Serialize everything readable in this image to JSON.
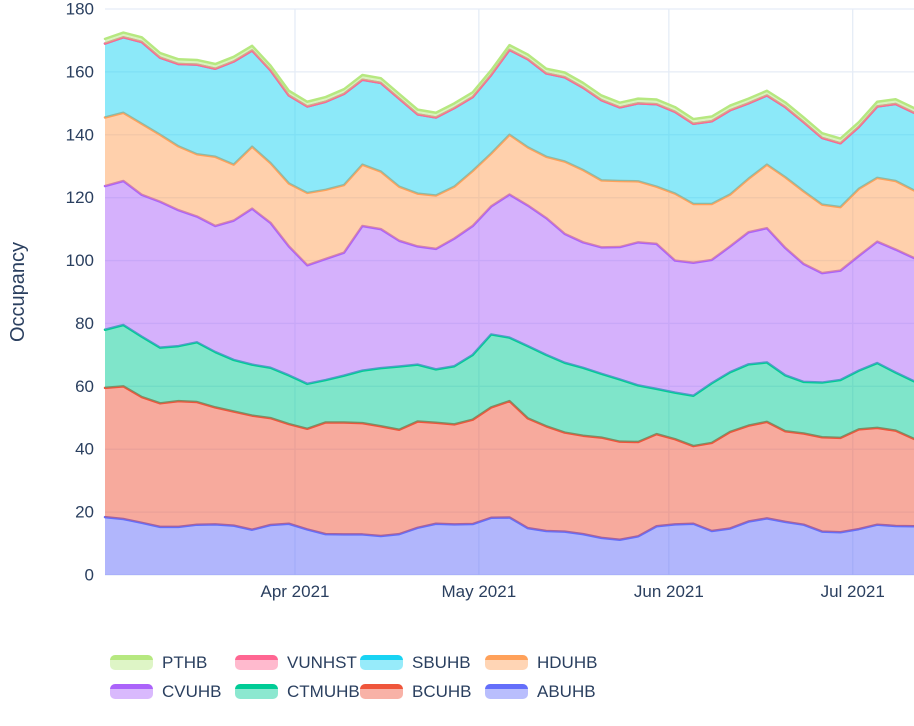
{
  "chart_data": {
    "type": "area",
    "subtype": "stacked",
    "title": "",
    "xlabel": "",
    "ylabel": "Occupancy",
    "ylim": [
      0,
      180
    ],
    "y_ticks": [
      0,
      20,
      40,
      60,
      80,
      100,
      120,
      140,
      160,
      180
    ],
    "x_ticks": [
      {
        "label": "Apr 2021",
        "date": "2021-04-01"
      },
      {
        "label": "May 2021",
        "date": "2021-05-01"
      },
      {
        "label": "Jun 2021",
        "date": "2021-06-01"
      },
      {
        "label": "Jul 2021",
        "date": "2021-07-01"
      }
    ],
    "x_range": [
      "2021-03-01",
      "2021-07-11"
    ],
    "grid": true,
    "legend_position": "bottom",
    "legend_order": [
      "PTHB",
      "VUNHST",
      "SBUHB",
      "HDUHB",
      "CVUHB",
      "CTMUHB",
      "BCUHB",
      "ABUHB"
    ],
    "stack_order": [
      "ABUHB",
      "BCUHB",
      "CTMUHB",
      "CVUHB",
      "HDUHB",
      "SBUHB",
      "VUNHST",
      "PTHB"
    ],
    "x": [
      "2021-03-01",
      "2021-03-04",
      "2021-03-07",
      "2021-03-10",
      "2021-03-13",
      "2021-03-16",
      "2021-03-19",
      "2021-03-22",
      "2021-03-25",
      "2021-03-28",
      "2021-03-31",
      "2021-04-03",
      "2021-04-06",
      "2021-04-09",
      "2021-04-12",
      "2021-04-15",
      "2021-04-18",
      "2021-04-21",
      "2021-04-24",
      "2021-04-27",
      "2021-04-30",
      "2021-05-03",
      "2021-05-06",
      "2021-05-09",
      "2021-05-12",
      "2021-05-15",
      "2021-05-18",
      "2021-05-21",
      "2021-05-24",
      "2021-05-27",
      "2021-05-30",
      "2021-06-02",
      "2021-06-05",
      "2021-06-08",
      "2021-06-11",
      "2021-06-14",
      "2021-06-17",
      "2021-06-20",
      "2021-06-23",
      "2021-06-26",
      "2021-06-29",
      "2021-07-02",
      "2021-07-05",
      "2021-07-08",
      "2021-07-11"
    ],
    "series": [
      {
        "name": "ABUHB",
        "color": "#636EFA",
        "values": [
          18.4,
          17.8,
          16.6,
          15.3,
          15.3,
          16,
          16.1,
          15.7,
          14.4,
          15.9,
          16.3,
          14.5,
          13,
          12.9,
          12.9,
          12.4,
          13,
          15,
          16.3,
          16.1,
          16.2,
          18.2,
          18.3,
          14.9,
          14,
          13.8,
          13,
          11.8,
          11.2,
          12.3,
          15.5,
          16.1,
          16.3,
          14,
          14.8,
          17,
          18,
          16.9,
          16,
          13.8,
          13.6,
          14.6,
          16,
          15.6,
          15.5
        ]
      },
      {
        "name": "BCUHB",
        "color": "#EF553B",
        "values": [
          41.1,
          42.2,
          40,
          39.3,
          40,
          39,
          37.2,
          36.3,
          36.3,
          34,
          31.7,
          32,
          35.5,
          35.6,
          35.4,
          34.9,
          33.2,
          33.8,
          32.1,
          31.8,
          33.2,
          35.1,
          37,
          34.9,
          33.3,
          31.5,
          31.3,
          31.9,
          31.2,
          30,
          29.3,
          27.1,
          24.7,
          28,
          30.7,
          30.5,
          30.7,
          28.8,
          29,
          30,
          30,
          31.7,
          30.8,
          30.3,
          27.8
        ]
      },
      {
        "name": "CTMUHB",
        "color": "#00CC96",
        "values": [
          18.5,
          19.5,
          19.2,
          17.7,
          17.5,
          19,
          17.6,
          16.4,
          16.2,
          16,
          15.5,
          14.3,
          13.5,
          14.9,
          16.7,
          18.5,
          20.1,
          18.1,
          17,
          18.5,
          20.6,
          23.2,
          20.2,
          23,
          22.7,
          22.2,
          21.6,
          20.3,
          19.8,
          18,
          14.4,
          14.8,
          16,
          19,
          19,
          19.5,
          18.9,
          17.8,
          16.4,
          17.4,
          18.4,
          18.7,
          20.6,
          18.5,
          18.3
        ]
      },
      {
        "name": "CVUHB",
        "color": "#AB63FA",
        "values": [
          45.7,
          45.8,
          45.1,
          46.4,
          43.2,
          40,
          40.1,
          44.3,
          49.6,
          46.1,
          41,
          37.7,
          38.5,
          39.1,
          46,
          44.2,
          40,
          37.6,
          38.3,
          40.6,
          41,
          40.7,
          45.5,
          44.7,
          43.5,
          41,
          39.9,
          40.2,
          42.1,
          45.5,
          46.1,
          42,
          42.3,
          39.2,
          40,
          42,
          42.7,
          40.5,
          37.5,
          34.8,
          34.8,
          36.5,
          38.6,
          39.1,
          39.2
        ]
      },
      {
        "name": "HDUHB",
        "color": "#FFA15A",
        "values": [
          21.8,
          21.7,
          22.6,
          21.3,
          20.3,
          19.8,
          22,
          17.8,
          19.7,
          19,
          20,
          23,
          22,
          21.5,
          19.5,
          18.3,
          17.2,
          16.8,
          17,
          16.5,
          17.5,
          16.8,
          19,
          18.5,
          19.5,
          23,
          23,
          21.3,
          21,
          19.4,
          18.2,
          21.3,
          18.7,
          17.8,
          16.5,
          17,
          20.2,
          22.5,
          23.1,
          21.8,
          20.2,
          21.3,
          20.3,
          21.8,
          21.5
        ]
      },
      {
        "name": "SBUHB",
        "color": "#19D3F3",
        "values": [
          23.5,
          24,
          26,
          24.5,
          26.2,
          28.5,
          28,
          32.8,
          30.6,
          29.5,
          28,
          27.5,
          28,
          29,
          27,
          28.2,
          28,
          25.2,
          24.8,
          25,
          23.5,
          25,
          27,
          28,
          26.5,
          26.8,
          26.2,
          25.5,
          23.4,
          24.8,
          26.2,
          26,
          25.5,
          26.3,
          26.8,
          24,
          22,
          22.3,
          22,
          21.2,
          20.3,
          19.7,
          22.7,
          24.5,
          24.7
        ]
      },
      {
        "name": "VUNHST",
        "color": "#FF6692",
        "values": [
          0,
          0,
          0,
          0,
          0,
          0,
          0,
          0,
          0,
          0,
          0,
          0,
          0,
          0,
          0,
          0,
          0,
          0,
          0,
          0,
          0,
          0,
          0,
          0,
          0,
          0,
          0,
          0,
          0,
          0,
          0,
          0,
          0,
          0,
          0,
          0,
          0,
          0,
          0,
          0,
          0,
          0,
          0,
          0,
          0
        ]
      },
      {
        "name": "PTHB",
        "color": "#B6E880",
        "values": [
          1.5,
          1.5,
          1.5,
          1.5,
          1.5,
          1.5,
          1.5,
          1.5,
          1.5,
          1.5,
          1.5,
          1.5,
          1.5,
          1.5,
          1.5,
          1.5,
          1.5,
          1.5,
          1.5,
          1.5,
          1.5,
          1.5,
          1.5,
          1.5,
          1.5,
          1.5,
          1.5,
          1.5,
          1.5,
          1.5,
          1.5,
          1.5,
          1.5,
          1.5,
          1.5,
          1.5,
          1.5,
          1.5,
          1.5,
          1.5,
          1.5,
          1.5,
          1.5,
          1.5,
          1.5
        ]
      }
    ],
    "fill_opacity": 0.5,
    "line_width": 2.5,
    "grid_color": "#E5ECF6",
    "text_color": "#2A3F5F",
    "background_color": "#FFFFFF"
  }
}
